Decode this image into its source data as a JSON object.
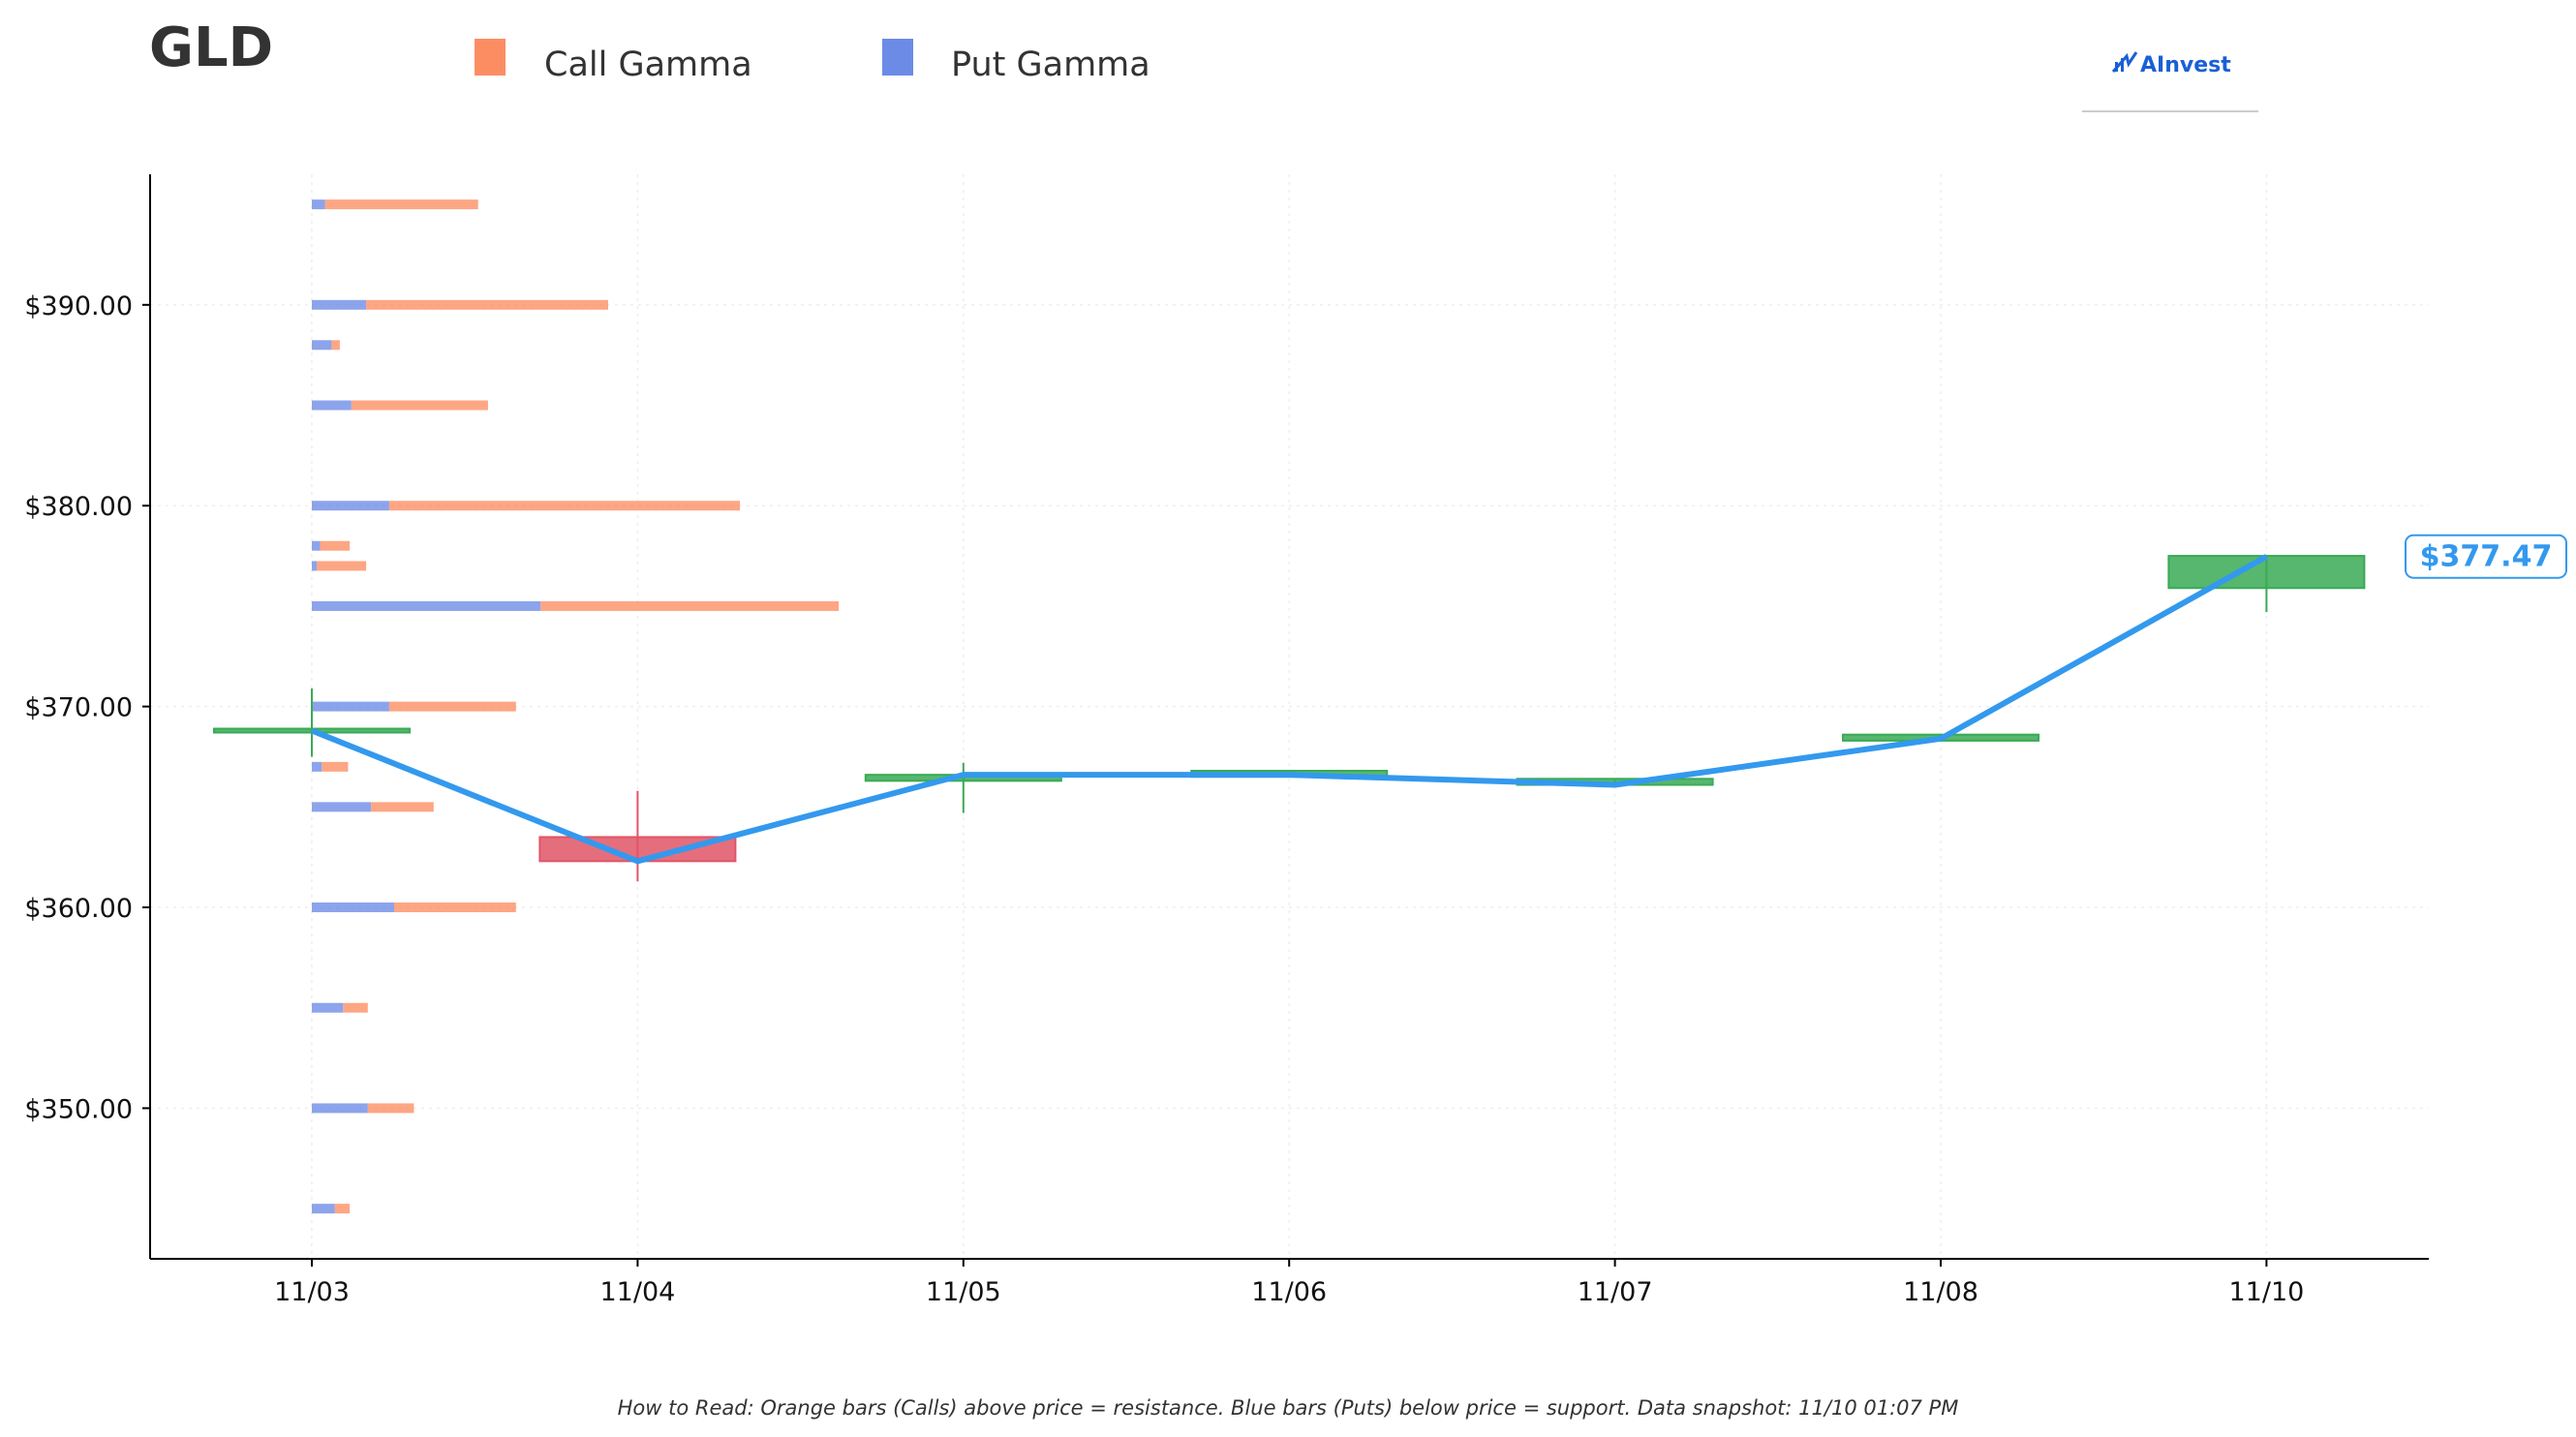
{
  "title": "GLD",
  "legend": {
    "call_label": "Call Gamma",
    "put_label": "Put Gamma"
  },
  "logo": {
    "text": "AInvest"
  },
  "footer": {
    "note": "How to Read: Orange bars (Calls) above price = resistance. Blue bars (Puts) below price = support. Data snapshot: 11/10 01:07 PM"
  },
  "price_tag": {
    "label": "$377.47"
  },
  "colors": {
    "call": "#fc8d62",
    "put": "#6b8be6",
    "price_line": "#3399ee",
    "up_candle": "#3aaa55",
    "down_candle": "#e05566",
    "axis": "#000000",
    "grid": "#eeeeee",
    "logo": "#1a5fd6"
  },
  "chart_data": {
    "type": "candlestick-gamma",
    "title": "GLD",
    "y_axis": {
      "min": 342.5,
      "max": 396.5,
      "ticks": [
        350,
        360,
        370,
        380,
        390
      ],
      "tick_labels": [
        "$350.00",
        "$360.00",
        "$370.00",
        "$380.00",
        "$390.00"
      ]
    },
    "x_axis": {
      "categories": [
        "11/03",
        "11/04",
        "11/05",
        "11/06",
        "11/07",
        "11/08",
        "11/10"
      ]
    },
    "candles": [
      {
        "date": "11/03",
        "open": 368.8,
        "close": 368.8,
        "high": 370.9,
        "low": 367.5
      },
      {
        "date": "11/04",
        "open": 363.5,
        "close": 362.3,
        "high": 365.8,
        "low": 361.3
      },
      {
        "date": "11/05",
        "open": 366.3,
        "close": 366.6,
        "high": 367.2,
        "low": 364.7
      },
      {
        "date": "11/06",
        "open": 366.5,
        "close": 366.8,
        "high": 366.8,
        "low": 366.5
      },
      {
        "date": "11/07",
        "open": 366.1,
        "close": 366.4,
        "high": 366.4,
        "low": 366.1
      },
      {
        "date": "11/08",
        "open": 368.3,
        "close": 368.6,
        "high": 368.6,
        "low": 368.3
      },
      {
        "date": "11/10",
        "open": 375.9,
        "close": 377.5,
        "high": 377.5,
        "low": 374.7
      }
    ],
    "price_line": [
      {
        "date": "11/03",
        "value": 368.8
      },
      {
        "date": "11/04",
        "value": 362.3
      },
      {
        "date": "11/05",
        "value": 366.6
      },
      {
        "date": "11/06",
        "value": 366.6
      },
      {
        "date": "11/07",
        "value": 366.1
      },
      {
        "date": "11/08",
        "value": 368.4
      },
      {
        "date": "11/10",
        "value": 377.47
      }
    ],
    "gamma_levels": [
      {
        "strike": 395,
        "put": 0.08,
        "call": 0.93
      },
      {
        "strike": 390,
        "put": 0.33,
        "call": 1.47
      },
      {
        "strike": 388,
        "put": 0.12,
        "call": 0.05
      },
      {
        "strike": 385,
        "put": 0.24,
        "call": 0.83
      },
      {
        "strike": 380,
        "put": 0.47,
        "call": 2.13
      },
      {
        "strike": 378,
        "put": 0.05,
        "call": 0.18
      },
      {
        "strike": 377,
        "put": 0.03,
        "call": 0.3
      },
      {
        "strike": 375,
        "put": 1.39,
        "call": 1.81
      },
      {
        "strike": 370,
        "put": 0.47,
        "call": 0.77
      },
      {
        "strike": 367,
        "put": 0.06,
        "call": 0.16
      },
      {
        "strike": 365,
        "put": 0.36,
        "call": 0.38
      },
      {
        "strike": 360,
        "put": 0.5,
        "call": 0.74
      },
      {
        "strike": 355,
        "put": 0.19,
        "call": 0.15
      },
      {
        "strike": 350,
        "put": 0.34,
        "call": 0.28
      },
      {
        "strike": 345,
        "put": 0.14,
        "call": 0.09
      }
    ],
    "grid": true,
    "legend_position": "top-left"
  }
}
